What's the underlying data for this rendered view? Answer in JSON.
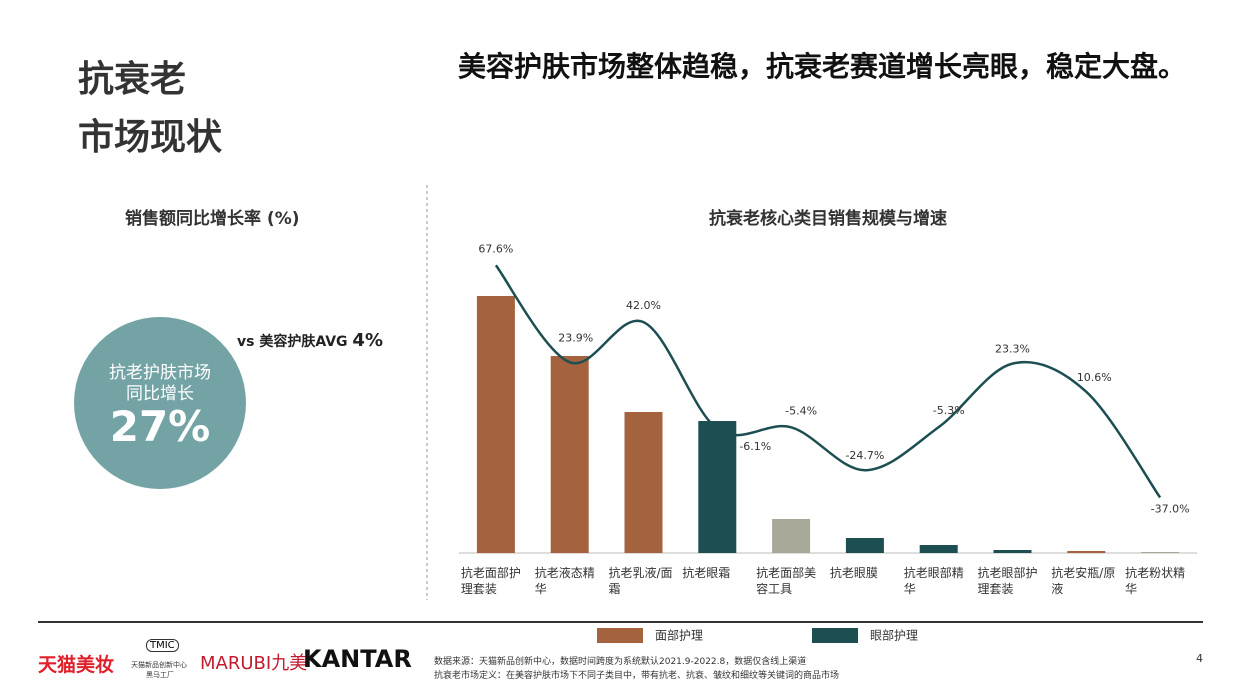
{
  "header": {
    "title_line1": "抗衰老",
    "title_line2": "市场现状",
    "headline": "美容护肤市场整体趋稳，抗衰老赛道增长亮眼，稳定大盘。"
  },
  "left_panel": {
    "title": "销售额同比增长率 (%)",
    "circle_line1": "抗老护肤市场",
    "circle_line2": "同比增长",
    "circle_value": 27,
    "circle_value_label": "27%",
    "compare_text": "vs 美容护肤AVG",
    "compare_value": 4,
    "compare_value_label": "4%",
    "circle_color": "#74a3a5"
  },
  "chart_data": {
    "type": "bar",
    "title": "抗衰老核心类目销售规模与增速",
    "categories": [
      "抗老面部护理套装",
      "抗老液态精华",
      "抗老乳液/面霜",
      "抗老眼霜",
      "抗老面部美容工具",
      "抗老眼膜",
      "抗老眼部精华",
      "抗老眼部护理套装",
      "抗老安瓶/原液",
      "抗老粉状精华"
    ],
    "values": [
      257,
      197,
      141,
      132,
      34,
      15,
      8,
      3,
      2,
      1
    ],
    "colors": [
      "#a5623f",
      "#a5623f",
      "#a5623f",
      "#1d4f52",
      "#a9a99a",
      "#1d4f52",
      "#1d4f52",
      "#1d4f52",
      "#a5623f",
      "#a9a99a"
    ],
    "ylim": [
      0,
      260
    ],
    "growth": {
      "values": [
        67.6,
        23.9,
        42.0,
        -6.1,
        -5.4,
        -24.7,
        -5.3,
        23.3,
        10.6,
        -37.0
      ],
      "value_labels": [
        "67.6%",
        "23.9%",
        "42.0%",
        "-6.1%",
        "-5.4%",
        "-24.7%",
        "-5.3%",
        "23.3%",
        "10.6%",
        "-37.0%"
      ],
      "color": "#1d4f52",
      "axis": "y2"
    },
    "y2lim": [
      -62,
      79
    ],
    "legend": [
      {
        "name": "面部护理",
        "color": "#a5623f"
      },
      {
        "name": "眼部护理",
        "color": "#1d4f52"
      }
    ]
  },
  "footer": {
    "logo1": "天猫美妆",
    "logo2_top": "TMIC",
    "logo2_mid": "天猫新品创新中心",
    "logo2_bottom": "黑马工厂",
    "logo3": "MARUBI",
    "logo3b": "九美",
    "logo4": "KANTAR",
    "source1": "数据来源：天猫新品创新中心，数据时间跨度为系统默认2021.9-2022.8，数据仅含线上渠道",
    "source2": "抗衰老市场定义：在美容护肤市场下不同子类目中，带有抗老、抗衰、皱纹和细纹等关键词的商品市场",
    "page": "4"
  }
}
